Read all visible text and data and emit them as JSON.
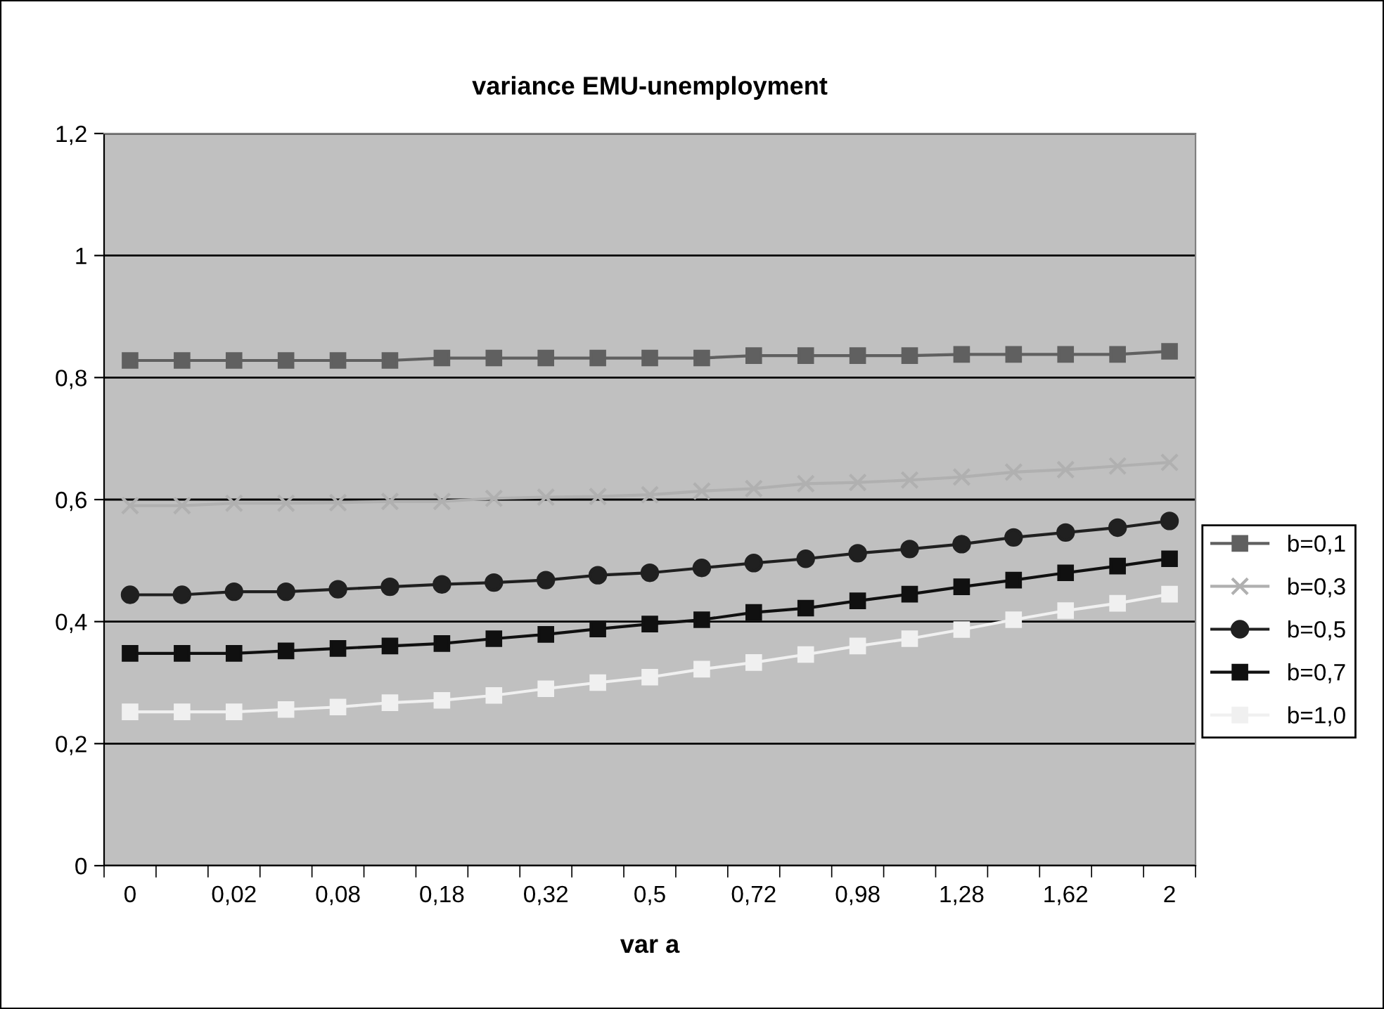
{
  "chart_data": {
    "type": "line",
    "title": "variance EMU-unemployment",
    "xlabel": "var a",
    "categories": [
      "0",
      null,
      "0,02",
      null,
      "0,08",
      null,
      "0,18",
      null,
      "0,32",
      null,
      "0,5",
      null,
      "0,72",
      null,
      "0,98",
      null,
      "1,28",
      null,
      "1,62",
      null,
      "2"
    ],
    "ylim": [
      0,
      1.2
    ],
    "yticks": [
      0,
      {
        "value": 0.2,
        "label": "0,2"
      },
      {
        "value": 0.4,
        "label": "0,4"
      },
      {
        "value": 0.6,
        "label": "0,6"
      },
      {
        "value": 0.8,
        "label": "0,8"
      },
      1,
      {
        "value": 1.2,
        "label": "1,2"
      }
    ],
    "grid": "y",
    "legend": "right",
    "series": [
      {
        "name": "b=0,1",
        "color": "#606060",
        "marker": "square",
        "values": [
          0.828,
          0.828,
          0.828,
          0.828,
          0.828,
          0.828,
          0.832,
          0.832,
          0.832,
          0.832,
          0.832,
          0.832,
          0.836,
          0.836,
          0.836,
          0.836,
          0.838,
          0.838,
          0.838,
          0.838,
          0.843
        ]
      },
      {
        "name": "b=0,3",
        "color": "#b0b0b0",
        "marker": "cross",
        "values": [
          0.59,
          0.59,
          0.594,
          0.594,
          0.595,
          0.597,
          0.597,
          0.602,
          0.604,
          0.605,
          0.608,
          0.614,
          0.618,
          0.626,
          0.628,
          0.632,
          0.637,
          0.645,
          0.649,
          0.655,
          0.661
        ]
      },
      {
        "name": "b=0,5",
        "color": "#202020",
        "marker": "circle",
        "values": [
          0.444,
          0.444,
          0.449,
          0.449,
          0.453,
          0.457,
          0.461,
          0.464,
          0.468,
          0.476,
          0.48,
          0.488,
          0.496,
          0.503,
          0.512,
          0.519,
          0.527,
          0.538,
          0.546,
          0.554,
          0.565
        ]
      },
      {
        "name": "b=0,7",
        "color": "#101010",
        "marker": "square",
        "values": [
          0.348,
          0.348,
          0.348,
          0.352,
          0.356,
          0.36,
          0.364,
          0.372,
          0.379,
          0.388,
          0.396,
          0.403,
          0.415,
          0.422,
          0.434,
          0.445,
          0.457,
          0.468,
          0.48,
          0.491,
          0.503
        ]
      },
      {
        "name": "b=1,0",
        "color": "#f0f0f0",
        "marker": "square",
        "values": [
          0.252,
          0.252,
          0.252,
          0.256,
          0.26,
          0.267,
          0.271,
          0.279,
          0.29,
          0.3,
          0.309,
          0.322,
          0.333,
          0.346,
          0.36,
          0.372,
          0.387,
          0.403,
          0.418,
          0.43,
          0.445
        ]
      }
    ]
  }
}
